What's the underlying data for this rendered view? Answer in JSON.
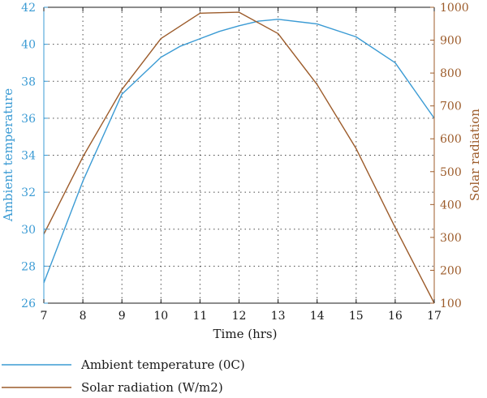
{
  "chart_data": {
    "type": "line",
    "title": "",
    "xlabel": "Time (hrs)",
    "ylabel_left": "Ambient temperature",
    "ylabel_right": "Solar radiation",
    "x": [
      7,
      8,
      9,
      10,
      10.5,
      11,
      11.5,
      12,
      12.5,
      13,
      14,
      15,
      16,
      17
    ],
    "xlim": [
      7,
      17
    ],
    "xticks": [
      7,
      8,
      9,
      10,
      11,
      12,
      13,
      14,
      15,
      16,
      17
    ],
    "ylim_left": [
      26,
      42
    ],
    "yticks_left": [
      26,
      28,
      30,
      32,
      34,
      36,
      38,
      40,
      42
    ],
    "ylim_right": [
      100,
      1000
    ],
    "yticks_right": [
      100,
      200,
      300,
      400,
      500,
      600,
      700,
      800,
      900,
      1000
    ],
    "grid": true,
    "legend_position": "bottom",
    "series": [
      {
        "name": "Ambient temperature (0C)",
        "axis": "left",
        "color": "#3b9bd4",
        "x": [
          7,
          8,
          9,
          10,
          10.5,
          11,
          11.5,
          12,
          12.5,
          13,
          14,
          15,
          16,
          17
        ],
        "values": [
          27.1,
          32.6,
          37.3,
          39.3,
          39.9,
          40.3,
          40.7,
          41.0,
          41.25,
          41.35,
          41.1,
          40.4,
          39.0,
          36.0
        ]
      },
      {
        "name": "Solar radiation (W/m2)",
        "axis": "right",
        "color": "#9c5b2a",
        "x": [
          7,
          8,
          9,
          10,
          11,
          12,
          13,
          14,
          15,
          16,
          17
        ],
        "values": [
          310,
          545,
          750,
          905,
          982,
          985,
          920,
          765,
          570,
          330,
          100
        ]
      }
    ]
  }
}
